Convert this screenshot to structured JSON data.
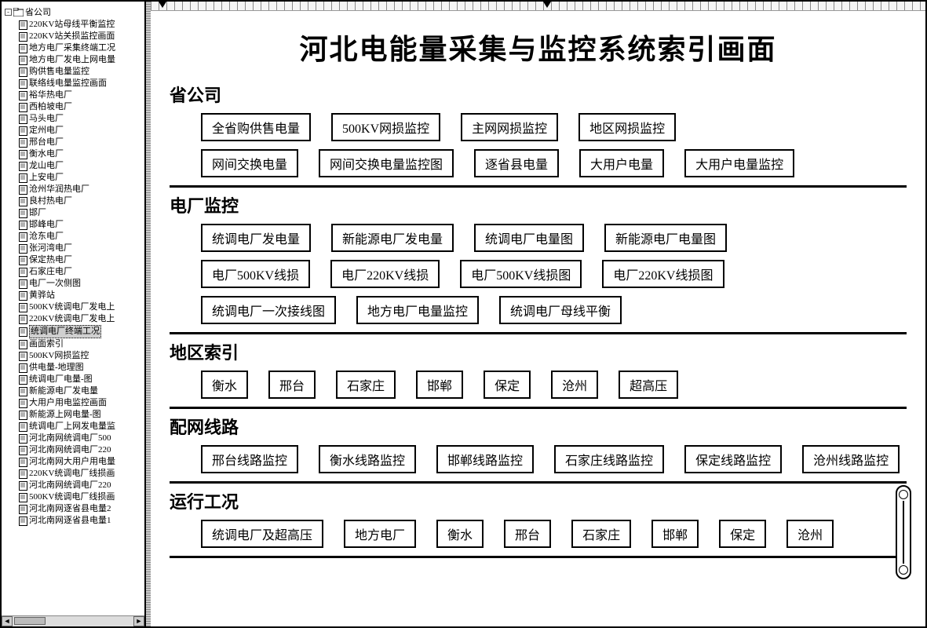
{
  "colors": {
    "background": "#ffffff",
    "border": "#000000",
    "text": "#000000",
    "selected_bg": "#d0d0d0"
  },
  "sidebar": {
    "root": {
      "label": "省公司"
    },
    "selected_index": 26,
    "items": [
      "220KV站母线平衡监控",
      "220KV站关损监控画面",
      "地方电厂采集终端工况",
      "地方电厂发电上网电量",
      "购供售电量监控",
      "联络线电量监控画面",
      "裕华热电厂",
      "西柏坡电厂",
      "马头电厂",
      "定州电厂",
      "邢台电厂",
      "衡水电厂",
      "龙山电厂",
      "上安电厂",
      "沧州华润热电厂",
      "良村热电厂",
      "邯厂",
      "邯峰电厂",
      "沧东电厂",
      "张河湾电厂",
      "保定热电厂",
      "石家庄电厂",
      "电厂一次侧图",
      "黄骅站",
      "500KV统调电厂发电上",
      "220KV统调电厂发电上",
      "统调电厂终端工况",
      "画面索引",
      "500KV网损监控",
      "供电量-地理图",
      "统调电厂电量-图",
      "新能源电厂发电量",
      "大用户用电监控画面",
      "新能源上网电量-图",
      "统调电厂上网发电量监",
      "河北南网统调电厂500",
      "河北南网统调电厂220",
      "河北南网大用户用电量",
      "220KV统调电厂线损画",
      "河北南网统调电厂220",
      "500KV统调电厂线损画",
      "河北南网逐省县电量2",
      "河北南网逐省县电量1"
    ]
  },
  "main": {
    "title": "河北电能量采集与监控系统索引画面",
    "sections": [
      {
        "title": "省公司",
        "rows": [
          [
            "全省购供售电量",
            "500KV网损监控",
            "主网网损监控",
            "地区网损监控"
          ],
          [
            "网间交换电量",
            "网间交换电量监控图",
            "逐省县电量",
            "大用户电量",
            "大用户电量监控"
          ]
        ]
      },
      {
        "title": "电厂监控",
        "rows": [
          [
            "统调电厂发电量",
            "新能源电厂发电量",
            "统调电厂电量图",
            "新能源电厂电量图"
          ],
          [
            "电厂500KV线损",
            "电厂220KV线损",
            "电厂500KV线损图",
            "电厂220KV线损图"
          ],
          [
            "统调电厂一次接线图",
            "地方电厂电量监控",
            "统调电厂母线平衡"
          ]
        ]
      },
      {
        "title": "地区索引",
        "rows": [
          [
            "衡水",
            "邢台",
            "石家庄",
            "邯郸",
            "保定",
            "沧州",
            "超高压"
          ]
        ]
      },
      {
        "title": "配网线路",
        "rows": [
          [
            "邢台线路监控",
            "衡水线路监控",
            "邯郸线路监控",
            "石家庄线路监控",
            "保定线路监控",
            "沧州线路监控"
          ]
        ]
      },
      {
        "title": "运行工况",
        "rows": [
          [
            "统调电厂及超高压",
            "地方电厂",
            "衡水",
            "邢台",
            "石家庄",
            "邯郸",
            "保定",
            "沧州"
          ]
        ]
      }
    ]
  }
}
